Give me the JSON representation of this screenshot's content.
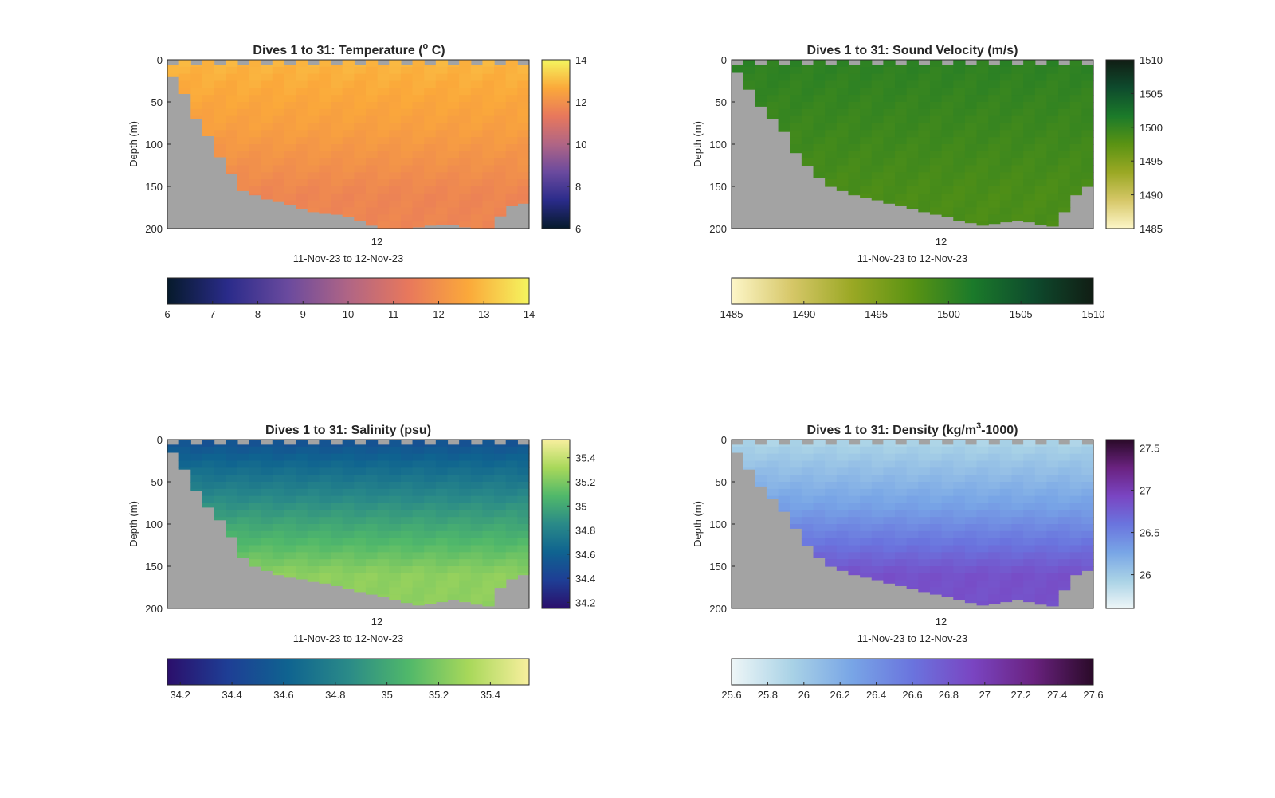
{
  "figure": {
    "panels": [
      {
        "title": "Dives 1 to 31: Temperature",
        "title_unit_prefix": "(",
        "title_sup": "o",
        "title_unit_suffix": " C)",
        "ylabel": "Depth (m)",
        "xtick": "12",
        "xlabel": "11-Nov-23 to 12-Nov-23",
        "ytick_labels": [
          "0",
          "50",
          "100",
          "150",
          "200"
        ],
        "vbar_ticks": [
          "6",
          "8",
          "10",
          "12",
          "14"
        ],
        "hbar_ticks": [
          "6",
          "7",
          "8",
          "9",
          "10",
          "11",
          "12",
          "13",
          "14"
        ]
      },
      {
        "title": "Dives 1 to 31: Sound Velocity (m/s)",
        "ylabel": "Depth (m)",
        "xtick": "12",
        "xlabel": "11-Nov-23 to 12-Nov-23",
        "ytick_labels": [
          "0",
          "50",
          "100",
          "150",
          "200"
        ],
        "vbar_ticks": [
          "1485",
          "1490",
          "1495",
          "1500",
          "1505",
          "1510"
        ],
        "hbar_ticks": [
          "1485",
          "1490",
          "1495",
          "1500",
          "1505",
          "1510"
        ]
      },
      {
        "title": "Dives 1 to 31: Salinity (psu)",
        "ylabel": "Depth (m)",
        "xtick": "12",
        "xlabel": "11-Nov-23 to 12-Nov-23",
        "ytick_labels": [
          "0",
          "50",
          "100",
          "150",
          "200"
        ],
        "vbar_ticks": [
          "34.2",
          "34.4",
          "34.6",
          "34.8",
          "35",
          "35.2",
          "35.4"
        ],
        "hbar_ticks": [
          "34.2",
          "34.4",
          "34.6",
          "34.8",
          "35",
          "35.2",
          "35.4"
        ]
      },
      {
        "title": "Dives 1 to 31: Density",
        "title_unit_prefix": "(kg/m",
        "title_sup": "3",
        "title_unit_suffix": "-1000)",
        "ylabel": "Depth (m)",
        "xtick": "12",
        "xlabel": "11-Nov-23 to 12-Nov-23",
        "ytick_labels": [
          "0",
          "50",
          "100",
          "150",
          "200"
        ],
        "vbar_ticks": [
          "26",
          "26.5",
          "27",
          "27.5"
        ],
        "hbar_ticks": [
          "25.6",
          "25.8",
          "26",
          "26.2",
          "26.4",
          "26.6",
          "26.8",
          "27",
          "27.2",
          "27.4",
          "27.6"
        ]
      }
    ]
  },
  "chart_data": [
    {
      "type": "heatmap",
      "title": "Dives 1 to 31: Temperature (o C)",
      "xlabel": "11-Nov-23 to 12-Nov-23",
      "ylabel": "Depth (m)",
      "x_range": "11-Nov-23 to 12-Nov-23",
      "ylim": [
        200,
        0
      ],
      "colorbar_range": [
        6,
        14
      ],
      "colormap": [
        "#061a2b",
        "#2a2b8a",
        "#6a4a9e",
        "#b06585",
        "#e8785c",
        "#fba93a",
        "#f4f55f"
      ],
      "bottom_depth_profile_m": [
        20,
        40,
        70,
        90,
        115,
        135,
        155,
        160,
        165,
        168,
        172,
        176,
        180,
        182,
        183,
        186,
        190,
        196,
        200,
        200,
        199,
        198,
        196,
        195,
        195,
        198,
        199,
        201,
        185,
        173,
        170
      ],
      "description_values": {
        "surface": 12.9,
        "mid": 12.4,
        "deep": 11.7
      }
    },
    {
      "type": "heatmap",
      "title": "Dives 1 to 31: Sound Velocity (m/s)",
      "xlabel": "11-Nov-23 to 12-Nov-23",
      "ylabel": "Depth (m)",
      "ylim": [
        200,
        0
      ],
      "colorbar_range": [
        1485,
        1510
      ],
      "colormap": [
        "#fdf6c8",
        "#d6c768",
        "#9aa824",
        "#5a9313",
        "#1b7a2a",
        "#0e4b2d",
        "#111d14"
      ],
      "bottom_depth_profile_m": [
        15,
        35,
        55,
        70,
        85,
        110,
        125,
        140,
        150,
        155,
        160,
        163,
        166,
        170,
        173,
        176,
        180,
        183,
        186,
        190,
        193,
        196,
        194,
        192,
        190,
        192,
        195,
        197,
        180,
        160,
        150
      ],
      "description_values": {
        "surface": 1500.5,
        "mid": 1499.5,
        "deep": 1498.5
      }
    },
    {
      "type": "heatmap",
      "title": "Dives 1 to 31: Salinity (psu)",
      "xlabel": "11-Nov-23 to 12-Nov-23",
      "ylabel": "Depth (m)",
      "ylim": [
        200,
        0
      ],
      "colorbar_range": [
        34.15,
        35.55
      ],
      "colormap": [
        "#2b0f6b",
        "#1e3e95",
        "#0f6390",
        "#2a8a88",
        "#50b86a",
        "#a8d85a",
        "#f8ef9e"
      ],
      "bottom_depth_profile_m": [
        15,
        35,
        60,
        80,
        95,
        115,
        140,
        150,
        155,
        160,
        163,
        165,
        168,
        170,
        173,
        176,
        180,
        183,
        186,
        190,
        193,
        196,
        194,
        192,
        190,
        192,
        195,
        197,
        175,
        165,
        160
      ],
      "description_values": {
        "surface": 34.5,
        "mid": 34.9,
        "deep": 35.25
      }
    },
    {
      "type": "heatmap",
      "title": "Dives 1 to 31: Density (kg/m3-1000)",
      "xlabel": "11-Nov-23 to 12-Nov-23",
      "ylabel": "Depth (m)",
      "ylim": [
        200,
        0
      ],
      "colorbar_range": [
        25.6,
        27.6
      ],
      "colormap": [
        "#eef6f7",
        "#a9d2e6",
        "#78a5e6",
        "#6a74de",
        "#7a45c2",
        "#6a2280",
        "#2a0a28"
      ],
      "bottom_depth_profile_m": [
        15,
        35,
        55,
        70,
        85,
        105,
        125,
        140,
        150,
        155,
        160,
        163,
        166,
        170,
        173,
        176,
        180,
        183,
        186,
        190,
        193,
        196,
        194,
        192,
        190,
        192,
        195,
        197,
        178,
        160,
        155
      ],
      "description_values": {
        "surface": 25.9,
        "mid": 26.3,
        "deep": 26.85
      }
    }
  ]
}
